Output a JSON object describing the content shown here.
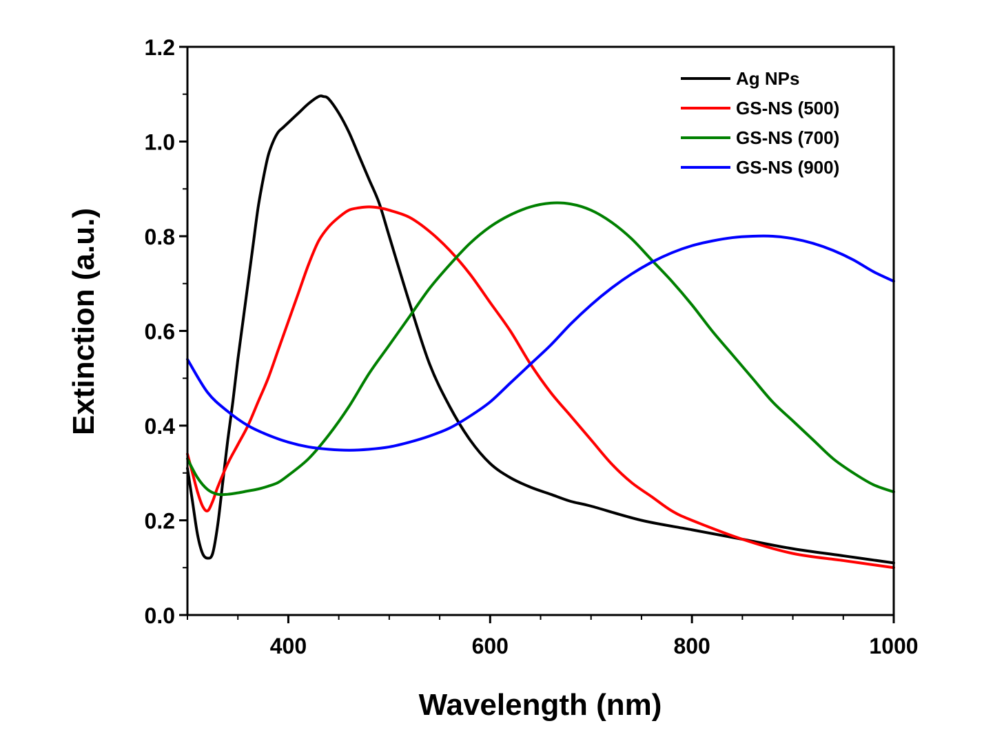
{
  "chart_data": {
    "type": "line",
    "title": "",
    "xlabel": "Wavelength (nm)",
    "ylabel": "Extinction (a.u.)",
    "xlim": [
      300,
      1000
    ],
    "ylim": [
      0.0,
      1.2
    ],
    "xticks": [
      400,
      600,
      800,
      1000
    ],
    "xtick_labels": [
      "400",
      "600",
      "800",
      "1000"
    ],
    "yticks": [
      0.0,
      0.2,
      0.4,
      0.6,
      0.8,
      1.0,
      1.2
    ],
    "ytick_labels": [
      "0.0",
      "0.2",
      "0.4",
      "0.6",
      "0.8",
      "1.0",
      "1.2"
    ],
    "grid": false,
    "legend_position": "top-right",
    "series": [
      {
        "name": "Ag NPs",
        "color": "#000000",
        "x": [
          300,
          305,
          310,
          315,
          320,
          325,
          330,
          335,
          340,
          345,
          350,
          355,
          360,
          365,
          370,
          375,
          380,
          385,
          390,
          395,
          400,
          410,
          420,
          430,
          435,
          440,
          450,
          460,
          470,
          480,
          490,
          500,
          520,
          540,
          560,
          580,
          600,
          620,
          640,
          660,
          680,
          700,
          750,
          800,
          850,
          900,
          950,
          1000
        ],
        "y": [
          0.31,
          0.24,
          0.17,
          0.13,
          0.12,
          0.13,
          0.19,
          0.28,
          0.37,
          0.45,
          0.54,
          0.62,
          0.7,
          0.78,
          0.86,
          0.92,
          0.97,
          1.0,
          1.02,
          1.03,
          1.04,
          1.06,
          1.08,
          1.095,
          1.095,
          1.09,
          1.06,
          1.02,
          0.97,
          0.92,
          0.87,
          0.8,
          0.66,
          0.53,
          0.44,
          0.37,
          0.32,
          0.29,
          0.27,
          0.255,
          0.24,
          0.23,
          0.2,
          0.18,
          0.16,
          0.14,
          0.125,
          0.11
        ]
      },
      {
        "name": "GS-NS (500)",
        "color": "#ff0000",
        "x": [
          300,
          305,
          310,
          315,
          320,
          325,
          330,
          340,
          350,
          360,
          370,
          380,
          390,
          400,
          410,
          420,
          430,
          440,
          450,
          460,
          470,
          480,
          490,
          500,
          520,
          540,
          560,
          580,
          600,
          620,
          640,
          660,
          680,
          700,
          720,
          740,
          760,
          780,
          800,
          850,
          900,
          950,
          1000
        ],
        "y": [
          0.34,
          0.3,
          0.26,
          0.23,
          0.22,
          0.24,
          0.27,
          0.32,
          0.36,
          0.4,
          0.45,
          0.5,
          0.56,
          0.62,
          0.68,
          0.74,
          0.79,
          0.82,
          0.84,
          0.855,
          0.86,
          0.862,
          0.86,
          0.855,
          0.84,
          0.81,
          0.77,
          0.72,
          0.66,
          0.6,
          0.53,
          0.47,
          0.42,
          0.37,
          0.32,
          0.28,
          0.25,
          0.22,
          0.2,
          0.16,
          0.13,
          0.115,
          0.1
        ]
      },
      {
        "name": "GS-NS (700)",
        "color": "#008000",
        "x": [
          300,
          310,
          320,
          330,
          340,
          350,
          360,
          370,
          380,
          390,
          400,
          420,
          440,
          460,
          480,
          500,
          520,
          540,
          560,
          580,
          600,
          620,
          640,
          660,
          680,
          700,
          720,
          740,
          760,
          780,
          800,
          820,
          840,
          860,
          880,
          900,
          920,
          940,
          960,
          980,
          1000
        ],
        "y": [
          0.33,
          0.29,
          0.265,
          0.255,
          0.255,
          0.258,
          0.262,
          0.266,
          0.272,
          0.28,
          0.295,
          0.33,
          0.38,
          0.44,
          0.51,
          0.57,
          0.63,
          0.69,
          0.74,
          0.785,
          0.82,
          0.845,
          0.862,
          0.87,
          0.868,
          0.855,
          0.83,
          0.795,
          0.75,
          0.705,
          0.655,
          0.6,
          0.55,
          0.5,
          0.45,
          0.41,
          0.37,
          0.33,
          0.3,
          0.275,
          0.26
        ]
      },
      {
        "name": "GS-NS (900)",
        "color": "#0000ff",
        "x": [
          300,
          320,
          340,
          360,
          380,
          400,
          420,
          440,
          460,
          480,
          500,
          520,
          540,
          560,
          580,
          600,
          620,
          640,
          660,
          680,
          700,
          720,
          740,
          760,
          780,
          800,
          820,
          840,
          860,
          880,
          900,
          920,
          940,
          960,
          980,
          1000
        ],
        "y": [
          0.54,
          0.47,
          0.43,
          0.4,
          0.38,
          0.365,
          0.355,
          0.35,
          0.348,
          0.35,
          0.355,
          0.365,
          0.378,
          0.395,
          0.42,
          0.45,
          0.49,
          0.53,
          0.57,
          0.615,
          0.655,
          0.69,
          0.72,
          0.745,
          0.765,
          0.78,
          0.79,
          0.797,
          0.8,
          0.8,
          0.795,
          0.785,
          0.77,
          0.75,
          0.725,
          0.705
        ]
      }
    ]
  }
}
